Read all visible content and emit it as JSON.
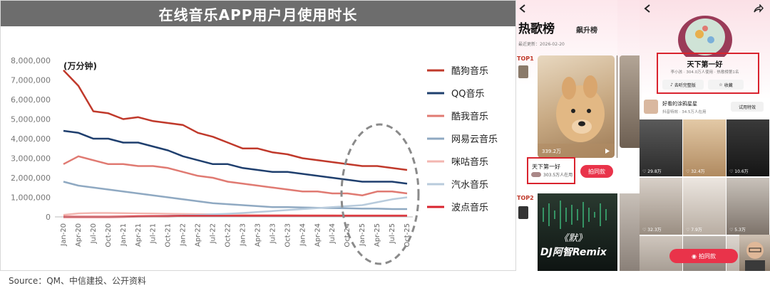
{
  "chart_data": {
    "type": "line",
    "title": "在线音乐APP用户月使用时长",
    "unit_label": "(万分钟)",
    "ylim": [
      0,
      8000000
    ],
    "yticks": [
      "0",
      "1,000,000",
      "2,000,000",
      "3,000,000",
      "4,000,000",
      "5,000,000",
      "6,000,000",
      "7,000,000",
      "8,000,000"
    ],
    "x": [
      "Jan-20",
      "Apr-20",
      "Jul-20",
      "Oct-20",
      "Jan-21",
      "Apr-21",
      "Jul-21",
      "Oct-21",
      "Jan-22",
      "Apr-22",
      "Jul-22",
      "Oct-22",
      "Jan-23",
      "Apr-23",
      "Jul-23",
      "Oct-23",
      "Jan-24",
      "Apr-24",
      "Jul-24",
      "Oct-24",
      "Jan-25",
      "Apr-25",
      "Jul-25",
      "Oct-25"
    ],
    "series": [
      {
        "name": "酷狗音乐",
        "color": "#c0392b",
        "values": [
          7500000,
          6700000,
          5400000,
          5300000,
          5000000,
          5100000,
          4900000,
          4800000,
          4700000,
          4300000,
          4100000,
          3800000,
          3500000,
          3500000,
          3300000,
          3200000,
          3000000,
          2900000,
          2800000,
          2700000,
          2600000,
          2600000,
          2500000,
          2400000
        ]
      },
      {
        "name": "QQ音乐",
        "color": "#1f3f6e",
        "values": [
          4400000,
          4300000,
          4000000,
          4000000,
          3800000,
          3800000,
          3600000,
          3400000,
          3100000,
          2900000,
          2700000,
          2700000,
          2500000,
          2400000,
          2300000,
          2300000,
          2200000,
          2100000,
          2000000,
          1900000,
          1800000,
          1800000,
          1800000,
          1700000
        ]
      },
      {
        "name": "酷我音乐",
        "color": "#e07a72",
        "values": [
          2700000,
          3100000,
          2900000,
          2700000,
          2700000,
          2600000,
          2600000,
          2500000,
          2300000,
          2100000,
          2000000,
          1800000,
          1700000,
          1600000,
          1500000,
          1400000,
          1300000,
          1300000,
          1200000,
          1200000,
          1100000,
          1300000,
          1300000,
          1200000
        ]
      },
      {
        "name": "网易云音乐",
        "color": "#8fa9c2",
        "values": [
          1800000,
          1600000,
          1500000,
          1400000,
          1300000,
          1200000,
          1100000,
          1000000,
          900000,
          800000,
          700000,
          650000,
          600000,
          550000,
          500000,
          500000,
          480000,
          460000,
          450000,
          440000,
          420000,
          420000,
          400000,
          400000
        ]
      },
      {
        "name": "咪咕音乐",
        "color": "#f3b6b0",
        "values": [
          100000,
          180000,
          200000,
          200000,
          190000,
          180000,
          170000,
          160000,
          150000,
          140000,
          130000,
          120000,
          110000,
          100000,
          100000,
          100000,
          90000,
          90000,
          90000,
          80000,
          80000,
          80000,
          80000,
          80000
        ]
      },
      {
        "name": "汽水音乐",
        "color": "#b8cbdc",
        "values": [
          0,
          0,
          0,
          0,
          10000,
          20000,
          40000,
          60000,
          80000,
          100000,
          130000,
          160000,
          200000,
          250000,
          300000,
          350000,
          400000,
          450000,
          500000,
          550000,
          600000,
          750000,
          900000,
          1000000
        ]
      },
      {
        "name": "波点音乐",
        "color": "#d9232e",
        "values": [
          0,
          0,
          0,
          0,
          10000,
          20000,
          30000,
          30000,
          40000,
          40000,
          40000,
          40000,
          40000,
          40000,
          40000,
          40000,
          40000,
          40000,
          40000,
          40000,
          40000,
          40000,
          40000,
          40000
        ]
      }
    ]
  },
  "source": "Source：QM、中信建投、公开资料",
  "phone_left": {
    "back_icon": "chevron-left-icon",
    "header_title": "热歌榜",
    "header_tab": "飙升榜",
    "update_date": "最近更新：2026-02-20",
    "top1_badge": "TOP1",
    "top2_badge": "TOP2",
    "likes_count": "339.2万",
    "song_title": "天下第一好",
    "song_users": "303.5万人在用",
    "shoot_button": "拍同款",
    "cover_title": "《默》",
    "cover_subtitle": "DJ阿智Remix"
  },
  "phone_right": {
    "back_icon": "chevron-left-icon",
    "share_icon": "share-icon",
    "song_title": "天下第一好",
    "song_meta": "李小孩 · 304.0万人使用 · 热歌榜第1名",
    "full_song_button": "去听完整版",
    "collect_button": "收藏",
    "effect_title": "好看的涂鸦星星",
    "effect_meta": "抖音特效 · 34.5万人在用",
    "try_effect_button": "试用特效",
    "tile_likes": [
      "29.8万",
      "32.4万",
      "10.6万",
      "32.3万",
      "7.9万",
      "5.3万",
      "6.6万",
      "6.2万",
      "9.6万"
    ],
    "shoot_button": "拍同款",
    "side_likes": "38.4"
  }
}
